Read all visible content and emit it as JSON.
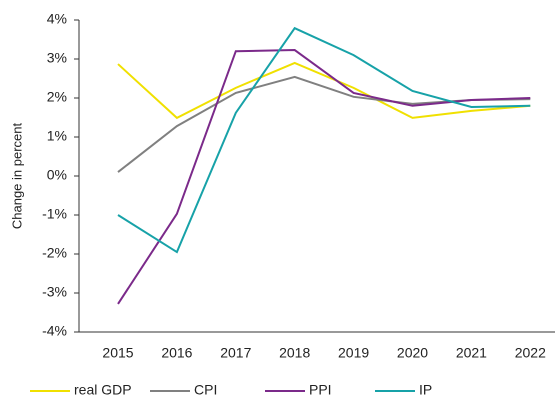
{
  "chart_data": {
    "type": "line",
    "y_label": "Change in percent",
    "categories": [
      "2015",
      "2016",
      "2017",
      "2018",
      "2019",
      "2020",
      "2021",
      "2022"
    ],
    "series": [
      {
        "name": "real GDP",
        "color": "#f0e000",
        "values": [
          2.87,
          1.49,
          2.26,
          2.9,
          2.26,
          1.49,
          1.67,
          1.8
        ]
      },
      {
        "name": "CPI",
        "color": "#808080",
        "values": [
          0.1,
          1.28,
          2.13,
          2.54,
          2.03,
          1.85,
          1.95,
          1.97
        ]
      },
      {
        "name": "PPI",
        "color": "#7b2a8a",
        "values": [
          -3.28,
          -0.97,
          3.2,
          3.23,
          2.13,
          1.8,
          1.95,
          2.0
        ]
      },
      {
        "name": "IP",
        "color": "#17a2a8",
        "values": [
          -1.0,
          -1.95,
          1.62,
          3.79,
          3.1,
          2.18,
          1.77,
          1.8
        ]
      }
    ],
    "ylim": [
      -4,
      4
    ],
    "yticks": [
      {
        "value": -4,
        "label": "-4%"
      },
      {
        "value": -3,
        "label": "-3%"
      },
      {
        "value": -2,
        "label": "-2%"
      },
      {
        "value": -1,
        "label": "-1%"
      },
      {
        "value": 0,
        "label": "0%"
      },
      {
        "value": 1,
        "label": "1%"
      },
      {
        "value": 2,
        "label": "2%"
      },
      {
        "value": 3,
        "label": "3%"
      },
      {
        "value": 4,
        "label": "4%"
      }
    ],
    "legend": "bottom"
  }
}
